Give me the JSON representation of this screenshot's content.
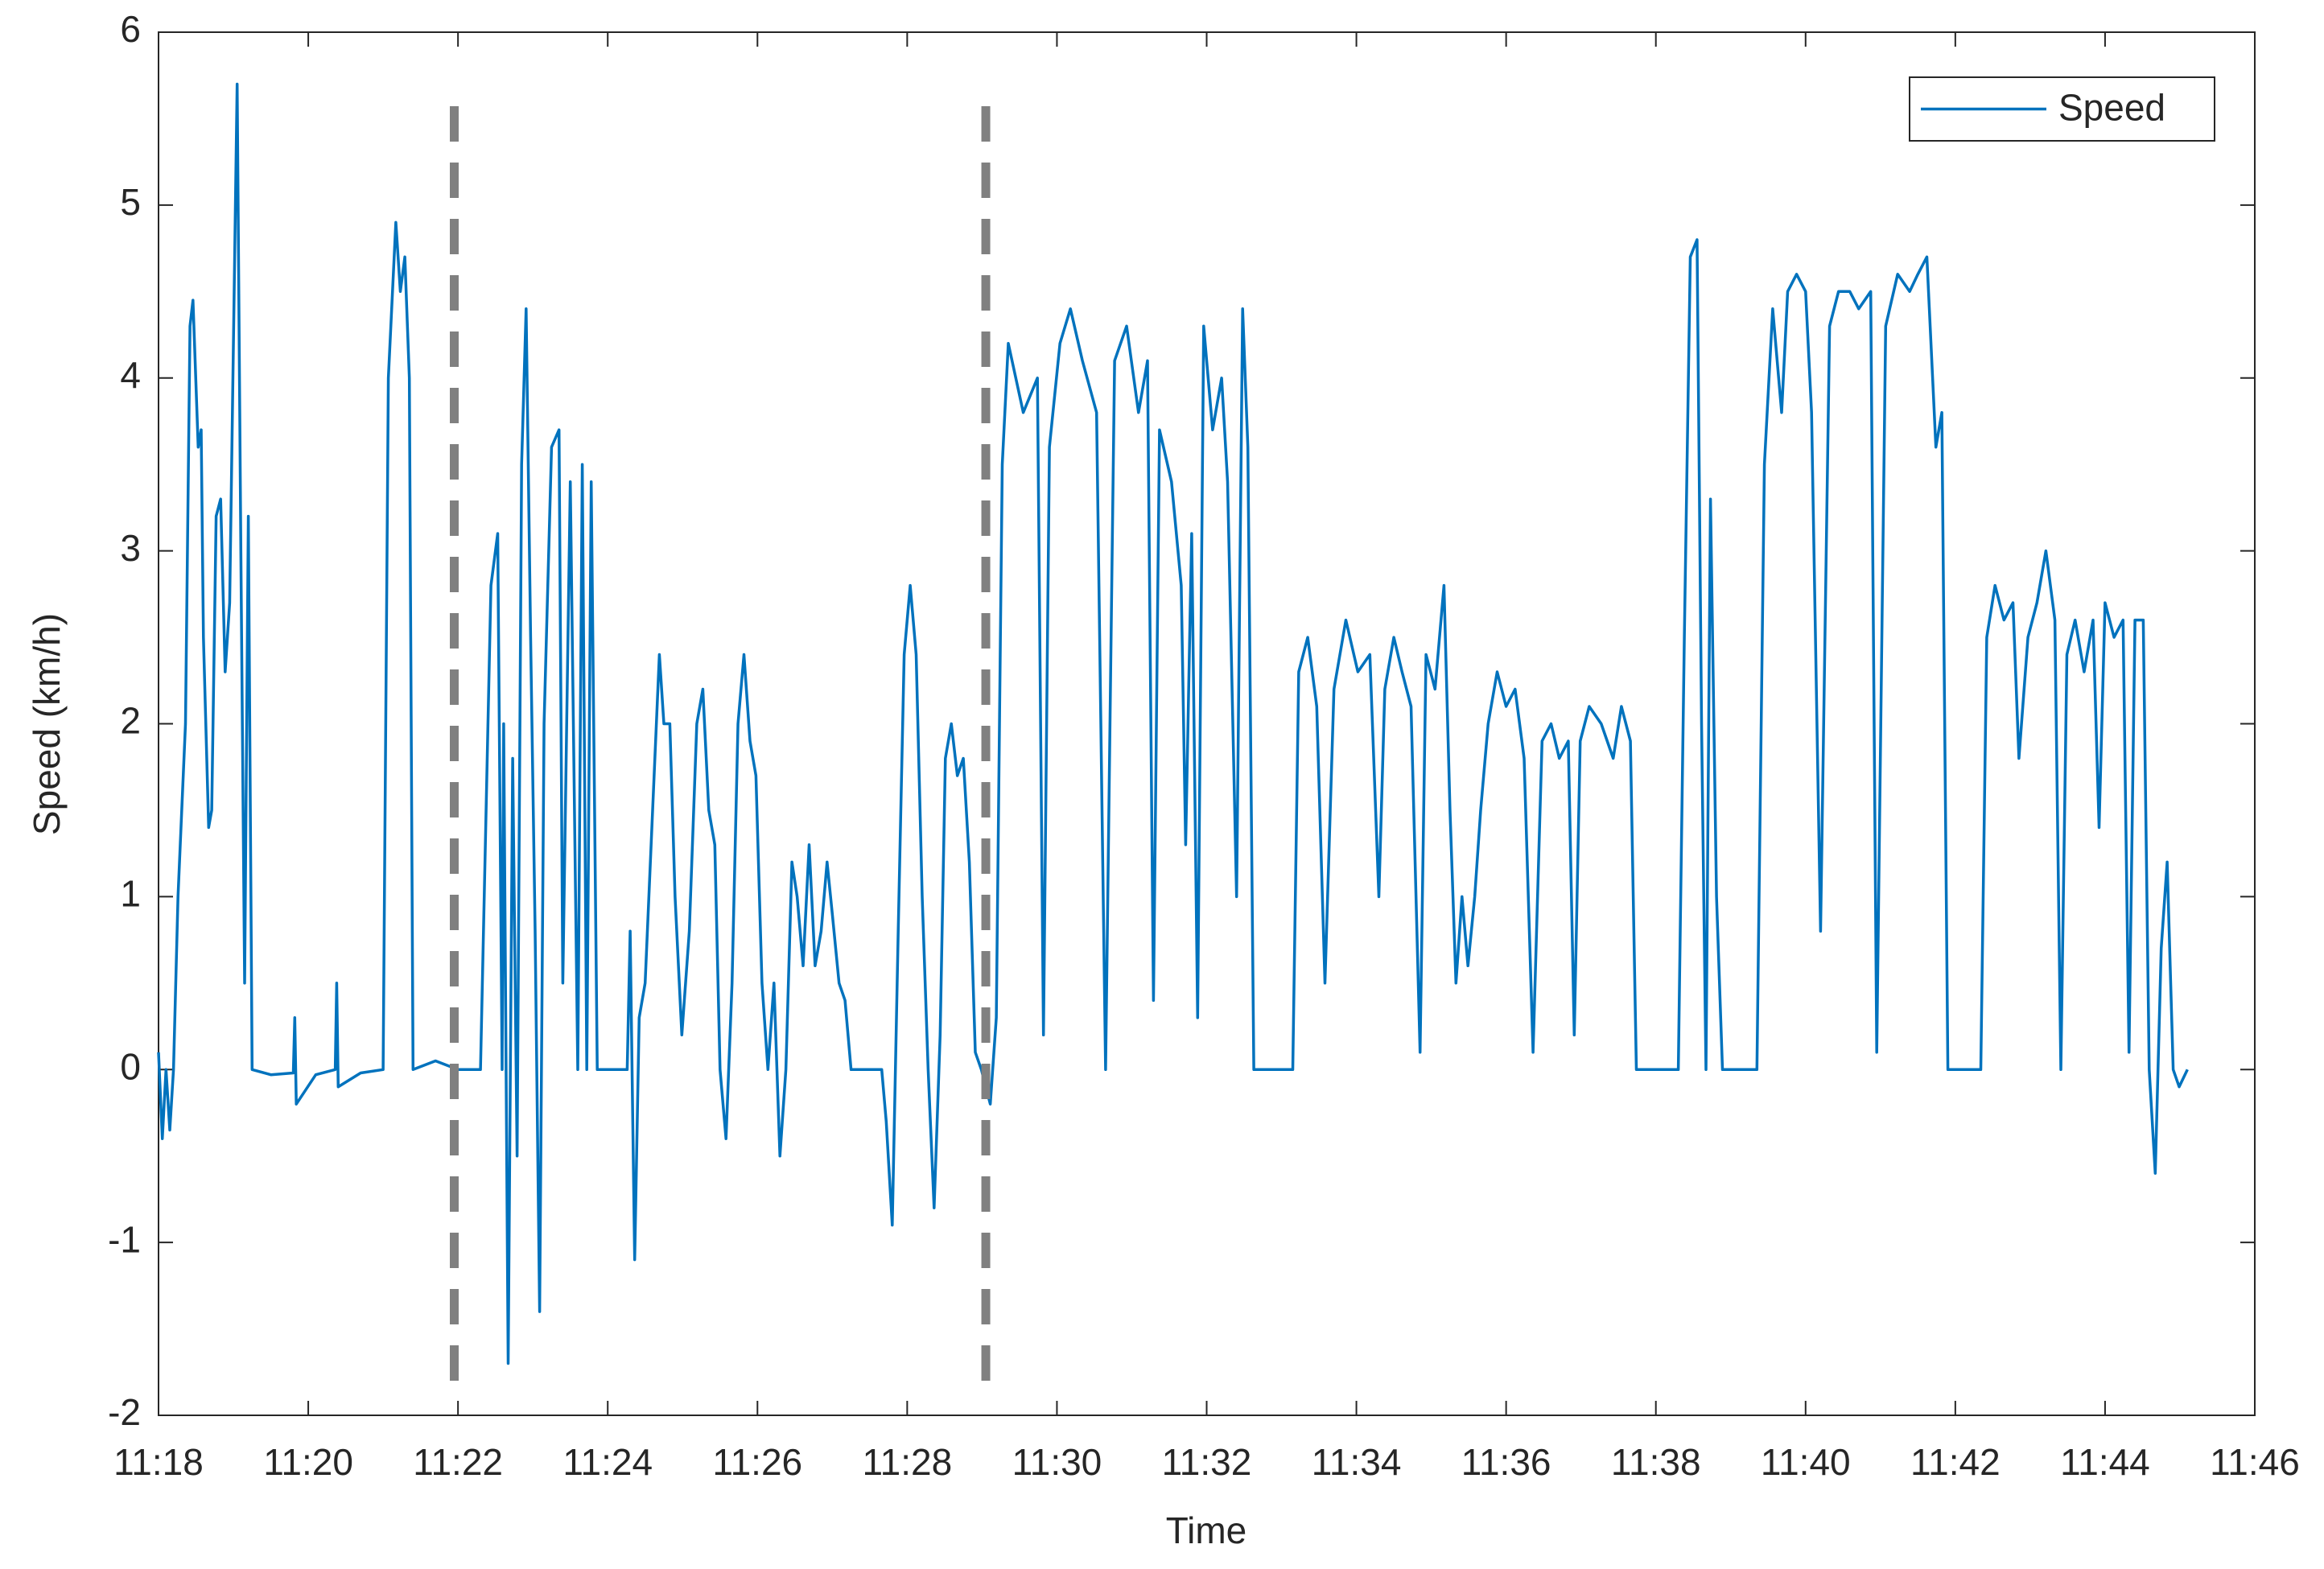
{
  "chart_data": {
    "type": "line",
    "xlabel": "Time",
    "ylabel": "Speed (km/h)",
    "x": [
      18.0,
      18.05,
      18.1,
      18.15,
      18.2,
      18.26,
      18.36,
      18.42,
      18.46,
      18.53,
      18.57,
      18.6,
      18.67,
      18.71,
      18.77,
      18.83,
      18.89,
      18.95,
      19.01,
      19.05,
      19.1,
      19.15,
      19.2,
      19.25,
      19.5,
      19.8,
      19.82,
      19.84,
      20.1,
      20.36,
      20.38,
      20.4,
      20.7,
      21.0,
      21.07,
      21.17,
      21.23,
      21.29,
      21.35,
      21.4,
      21.7,
      22.0,
      22.3,
      22.44,
      22.53,
      22.59,
      22.61,
      22.67,
      22.73,
      22.79,
      22.85,
      22.91,
      22.97,
      23.03,
      23.09,
      23.15,
      23.25,
      23.35,
      23.4,
      23.5,
      23.6,
      23.66,
      23.72,
      23.78,
      23.86,
      24.26,
      24.3,
      24.36,
      24.42,
      24.5,
      24.6,
      24.69,
      24.75,
      24.83,
      24.9,
      24.99,
      25.09,
      25.19,
      25.27,
      25.35,
      25.43,
      25.5,
      25.58,
      25.66,
      25.74,
      25.82,
      25.9,
      25.98,
      26.06,
      26.14,
      26.22,
      26.3,
      26.38,
      26.46,
      26.53,
      26.61,
      26.69,
      26.77,
      26.85,
      26.93,
      27.0,
      27.09,
      27.17,
      27.25,
      27.66,
      27.72,
      27.8,
      27.88,
      27.96,
      28.04,
      28.12,
      28.2,
      28.28,
      28.36,
      28.44,
      28.51,
      28.59,
      28.67,
      28.75,
      28.83,
      28.91,
      28.99,
      29.11,
      29.19,
      29.27,
      29.35,
      29.55,
      29.74,
      29.82,
      29.9,
      30.04,
      30.18,
      30.34,
      30.53,
      30.65,
      30.77,
      30.93,
      31.09,
      31.21,
      31.29,
      31.37,
      31.53,
      31.66,
      31.72,
      31.8,
      31.88,
      31.96,
      32.08,
      32.2,
      32.28,
      32.4,
      32.48,
      32.55,
      32.63,
      33.15,
      33.23,
      33.35,
      33.47,
      33.58,
      33.7,
      33.86,
      34.02,
      34.18,
      34.3,
      34.38,
      34.5,
      34.61,
      34.73,
      34.85,
      34.93,
      35.05,
      35.17,
      35.25,
      35.33,
      35.41,
      35.49,
      35.58,
      35.66,
      35.76,
      35.88,
      36.0,
      36.12,
      36.24,
      36.36,
      36.48,
      36.6,
      36.71,
      36.83,
      36.91,
      36.99,
      37.11,
      37.27,
      37.43,
      37.54,
      37.66,
      37.74,
      38.3,
      38.38,
      38.46,
      38.55,
      38.61,
      38.67,
      38.73,
      38.81,
      38.89,
      39.35,
      39.45,
      39.56,
      39.68,
      39.76,
      39.88,
      40.0,
      40.08,
      40.2,
      40.32,
      40.44,
      40.59,
      40.71,
      40.87,
      40.95,
      41.07,
      41.23,
      41.39,
      41.5,
      41.62,
      41.74,
      41.82,
      41.9,
      42.34,
      42.42,
      42.53,
      42.65,
      42.77,
      42.85,
      42.97,
      43.09,
      43.21,
      43.33,
      43.41,
      43.49,
      43.6,
      43.72,
      43.84,
      43.92,
      44.0,
      44.12,
      44.24,
      44.32,
      44.4,
      44.51,
      44.59,
      44.67,
      44.75,
      44.83,
      44.91,
      44.99,
      45.1
    ],
    "series": [
      {
        "name": "Speed",
        "color": "#0072bd",
        "values": [
          0.1,
          -0.4,
          0,
          -0.35,
          0,
          1.0,
          2.0,
          4.3,
          4.45,
          3.6,
          3.7,
          2.5,
          1.4,
          1.5,
          3.2,
          3.3,
          2.3,
          2.7,
          4.5,
          5.7,
          3.0,
          0.5,
          3.2,
          0,
          -0.03,
          -0.02,
          0.3,
          -0.2,
          -0.03,
          0,
          0.5,
          -0.1,
          -0.02,
          0,
          4.0,
          4.9,
          4.5,
          4.7,
          4.0,
          0,
          0.05,
          0,
          0,
          2.8,
          3.1,
          0,
          2.0,
          -1.7,
          1.8,
          -0.5,
          3.5,
          4.4,
          2.5,
          0.8,
          -1.4,
          2.0,
          3.6,
          3.7,
          0.5,
          3.4,
          0,
          3.5,
          0,
          3.4,
          0,
          0,
          0.8,
          -1.1,
          0.3,
          0.5,
          1.5,
          2.4,
          2.0,
          2.0,
          1.0,
          0.2,
          0.8,
          2.0,
          2.2,
          1.5,
          1.3,
          0,
          -0.4,
          0.5,
          2.0,
          2.4,
          1.9,
          1.7,
          0.5,
          0,
          0.5,
          -0.5,
          0,
          1.2,
          1.0,
          0.6,
          1.3,
          0.6,
          0.8,
          1.2,
          0.9,
          0.5,
          0.4,
          0,
          0,
          -0.3,
          -0.9,
          0.8,
          2.4,
          2.8,
          2.4,
          1.0,
          0,
          -0.8,
          0.2,
          1.8,
          2.0,
          1.7,
          1.8,
          1.2,
          0.1,
          0,
          -0.2,
          0.3,
          3.5,
          4.2,
          3.8,
          4.0,
          0.2,
          3.6,
          4.2,
          4.4,
          4.1,
          3.8,
          0,
          4.1,
          4.3,
          3.8,
          4.1,
          0.4,
          3.7,
          3.4,
          2.8,
          1.3,
          3.1,
          0.3,
          4.3,
          3.7,
          4.0,
          3.4,
          1.0,
          4.4,
          3.6,
          0,
          0,
          2.3,
          2.5,
          2.1,
          0.5,
          2.2,
          2.6,
          2.3,
          2.4,
          1.0,
          2.2,
          2.5,
          2.3,
          2.1,
          0.1,
          2.4,
          2.2,
          2.8,
          1.5,
          0.5,
          1.0,
          0.6,
          1.0,
          1.5,
          2.0,
          2.3,
          2.1,
          2.2,
          1.8,
          0.1,
          1.9,
          2.0,
          1.8,
          1.9,
          0.2,
          1.9,
          2.1,
          2.0,
          1.8,
          2.1,
          1.9,
          0,
          0,
          2.5,
          4.7,
          4.8,
          2.0,
          0,
          3.3,
          1.0,
          0,
          0,
          3.5,
          4.4,
          3.8,
          4.5,
          4.6,
          4.5,
          3.8,
          0.8,
          4.3,
          4.5,
          4.5,
          4.4,
          4.5,
          0.1,
          4.3,
          4.6,
          4.5,
          4.6,
          4.7,
          3.6,
          3.8,
          0,
          0,
          2.5,
          2.8,
          2.6,
          2.7,
          1.8,
          2.5,
          2.7,
          3.0,
          2.6,
          0,
          2.4,
          2.6,
          2.3,
          2.6,
          1.4,
          2.7,
          2.5,
          2.6,
          0.1,
          2.6,
          2.6,
          0,
          -0.6,
          0.7,
          1.2,
          0,
          -0.1,
          0
        ]
      }
    ],
    "xlim": [
      18,
      46
    ],
    "xticks": [
      {
        "value": 18,
        "label": "11:18"
      },
      {
        "value": 20,
        "label": "11:20"
      },
      {
        "value": 22,
        "label": "11:22"
      },
      {
        "value": 24,
        "label": "11:24"
      },
      {
        "value": 26,
        "label": "11:26"
      },
      {
        "value": 28,
        "label": "11:28"
      },
      {
        "value": 30,
        "label": "11:30"
      },
      {
        "value": 32,
        "label": "11:32"
      },
      {
        "value": 34,
        "label": "11:34"
      },
      {
        "value": 36,
        "label": "11:36"
      },
      {
        "value": 38,
        "label": "11:38"
      },
      {
        "value": 40,
        "label": "11:40"
      },
      {
        "value": 42,
        "label": "11:42"
      },
      {
        "value": 44,
        "label": "11:44"
      },
      {
        "value": 46,
        "label": "11:46"
      }
    ],
    "ylim": [
      -2,
      6
    ],
    "yticks": [
      -2,
      -1,
      0,
      1,
      2,
      3,
      4,
      5,
      6
    ],
    "vlines": [
      {
        "x": 21.95,
        "y": [
          -1.8,
          5.6
        ],
        "color": "#808080"
      },
      {
        "x": 29.05,
        "y": [
          -1.8,
          5.65
        ],
        "color": "#808080"
      }
    ],
    "legend": "top-right",
    "grid": false
  }
}
